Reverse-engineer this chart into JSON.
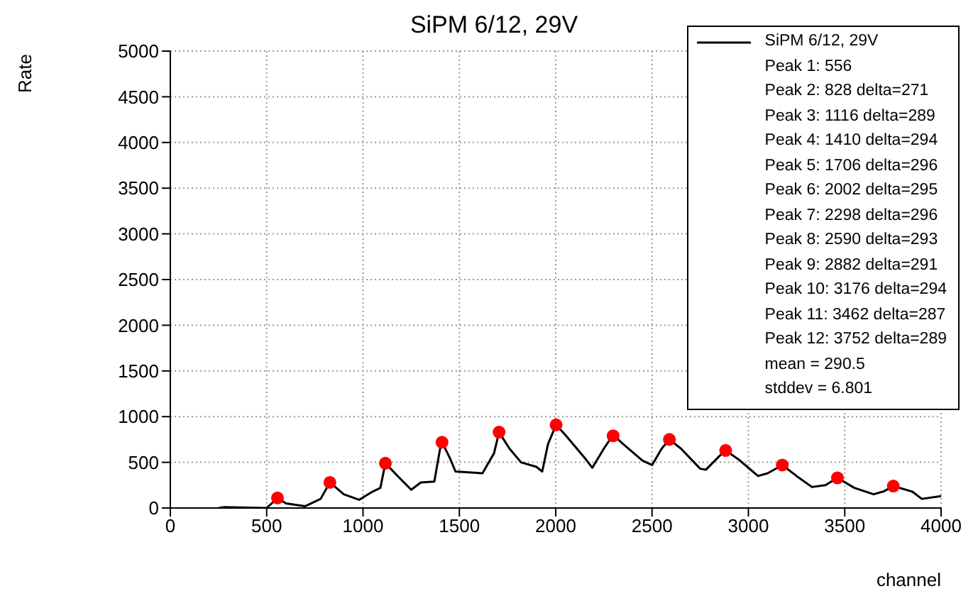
{
  "chart_data": {
    "type": "line",
    "title": "SiPM 6/12, 29V",
    "xlabel": "channel",
    "ylabel": "Rate",
    "xlim": [
      0,
      4000
    ],
    "xticks": [
      0,
      500,
      1000,
      1500,
      2000,
      2500,
      3000,
      3500,
      4000
    ],
    "ylim": [
      0,
      5000
    ],
    "yticks": [
      0,
      500,
      1000,
      1500,
      2000,
      2500,
      3000,
      3500,
      4000,
      4500,
      5000
    ],
    "grid": true,
    "legend": "top right",
    "marker": "none",
    "line_style": "solid",
    "annotations": [
      "Peak 1: 556",
      "Peak 2: 828 delta=271",
      "Peak 3: 1116 delta=289",
      "Peak 4: 1410 delta=294",
      "Peak 5: 1706 delta=296",
      "Peak 6: 2002 delta=295",
      "Peak 7: 2298 delta=296",
      "Peak 8: 2590 delta=293",
      "Peak 9: 2882 delta=291",
      "Peak 10: 3176 delta=294",
      "Peak 11: 3462 delta=287",
      "Peak 12: 3752 delta=289",
      "mean = 290.5",
      "stddev = 6.801"
    ],
    "series": [
      {
        "name": "SiPM 6/12, 29V",
        "color": "#000000",
        "x": [
          250,
          280,
          500,
          556,
          600,
          700,
          780,
          828,
          900,
          980,
          1050,
          1090,
          1116,
          1180,
          1250,
          1300,
          1370,
          1400,
          1410,
          1450,
          1480,
          1550,
          1620,
          1680,
          1706,
          1760,
          1820,
          1900,
          1930,
          1960,
          2002,
          2050,
          2150,
          2190,
          2250,
          2298,
          2350,
          2450,
          2500,
          2550,
          2590,
          2650,
          2750,
          2780,
          2850,
          2882,
          2950,
          3050,
          3100,
          3176,
          3250,
          3330,
          3400,
          3462,
          3550,
          3650,
          3700,
          3752,
          3850,
          3900,
          4000
        ],
        "values": [
          0,
          10,
          0,
          110,
          50,
          20,
          100,
          280,
          150,
          90,
          180,
          220,
          490,
          350,
          200,
          280,
          290,
          650,
          720,
          550,
          400,
          390,
          380,
          600,
          830,
          650,
          500,
          450,
          400,
          700,
          910,
          800,
          550,
          440,
          650,
          800,
          700,
          520,
          470,
          650,
          750,
          650,
          430,
          420,
          570,
          630,
          530,
          350,
          380,
          470,
          350,
          230,
          250,
          330,
          220,
          150,
          180,
          240,
          180,
          100,
          130
        ]
      },
      {
        "type": "scatter",
        "color": "#ff0000",
        "marker": "circle",
        "x": [
          556,
          828,
          1116,
          1410,
          1706,
          2002,
          2298,
          2590,
          2882,
          3176,
          3462,
          3752
        ],
        "values": [
          110,
          280,
          490,
          720,
          830,
          910,
          790,
          750,
          630,
          470,
          330,
          240
        ]
      }
    ]
  }
}
